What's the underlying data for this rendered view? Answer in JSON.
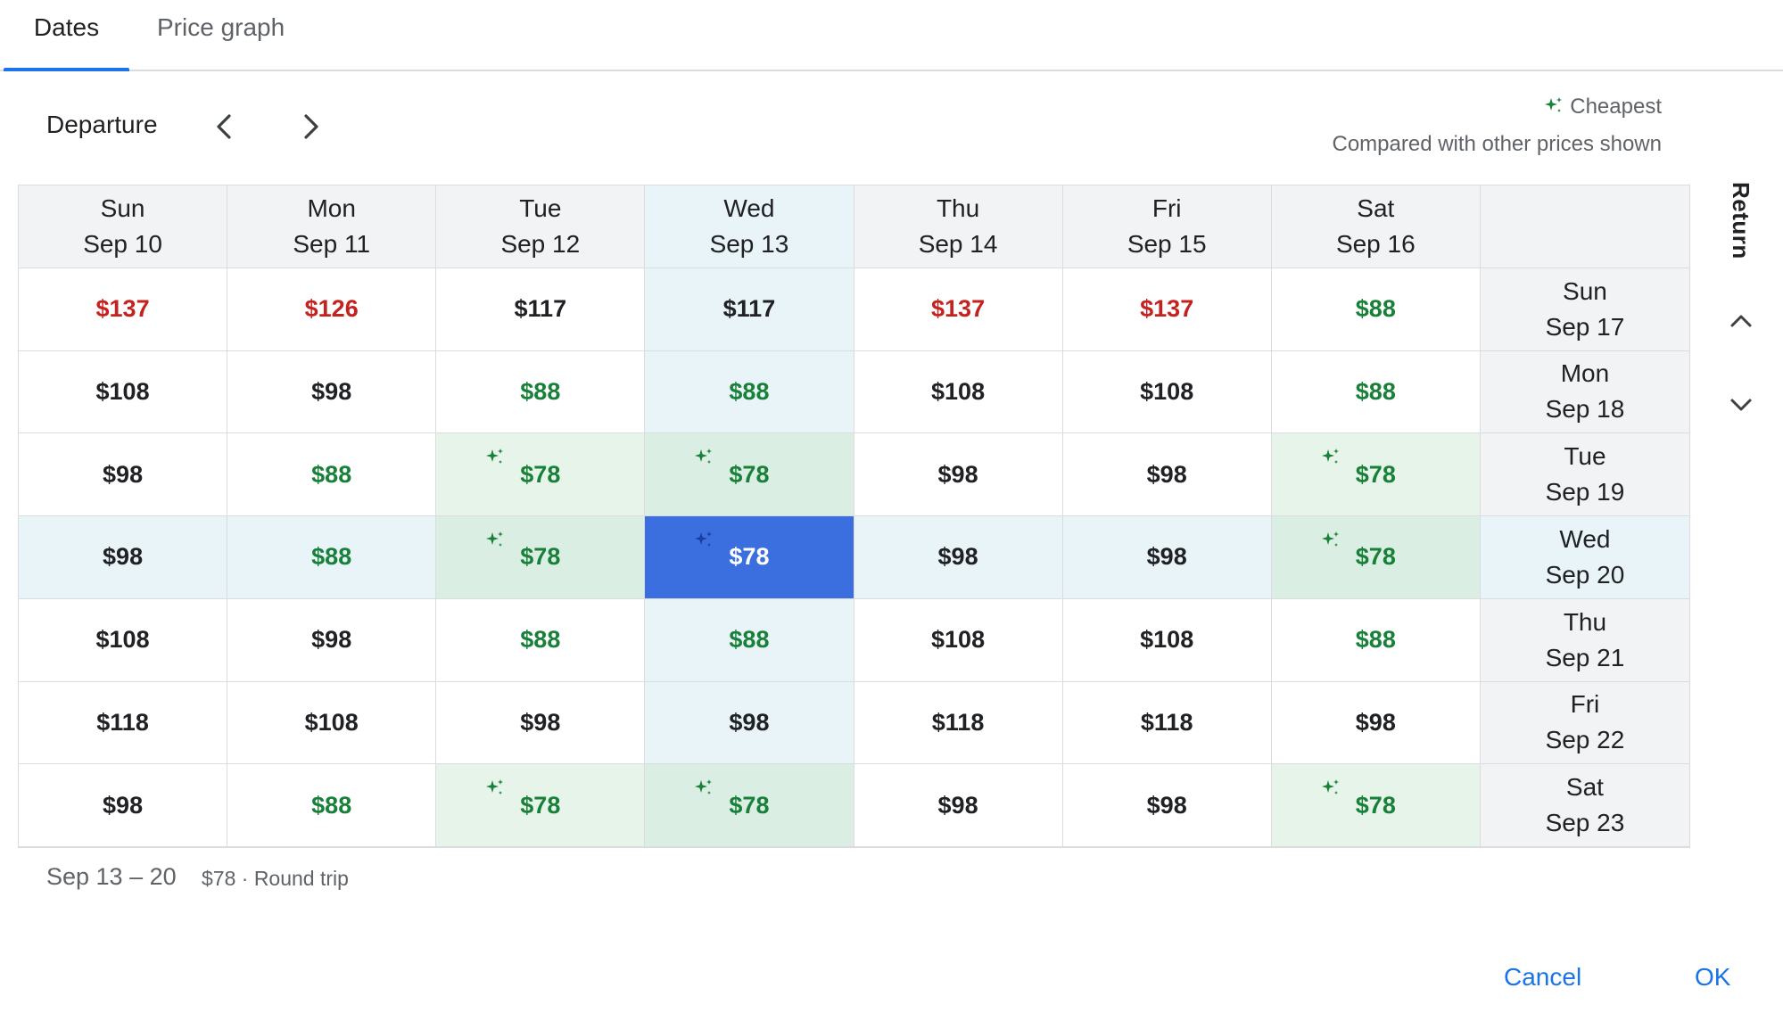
{
  "tabs": [
    {
      "label": "Dates",
      "active": true
    },
    {
      "label": "Price graph",
      "active": false
    }
  ],
  "departure_label": "Departure",
  "legend": {
    "cheapest_label": "Cheapest",
    "note": "Compared with other prices shown",
    "icon": "sparkle-icon",
    "color": "#188038"
  },
  "return_label": "Return",
  "columns": [
    {
      "day": "Sun",
      "date": "Sep 10"
    },
    {
      "day": "Mon",
      "date": "Sep 11"
    },
    {
      "day": "Tue",
      "date": "Sep 12"
    },
    {
      "day": "Wed",
      "date": "Sep 13"
    },
    {
      "day": "Thu",
      "date": "Sep 14"
    },
    {
      "day": "Fri",
      "date": "Sep 15"
    },
    {
      "day": "Sat",
      "date": "Sep 16"
    }
  ],
  "selected_column_index": 3,
  "selected_row_index": 3,
  "rows": [
    {
      "day": "Sun",
      "date": "Sep 17",
      "cells": [
        {
          "price": "$137",
          "tone": "red"
        },
        {
          "price": "$126",
          "tone": "red"
        },
        {
          "price": "$117",
          "tone": "black"
        },
        {
          "price": "$117",
          "tone": "black"
        },
        {
          "price": "$137",
          "tone": "red"
        },
        {
          "price": "$137",
          "tone": "red"
        },
        {
          "price": "$88",
          "tone": "green"
        }
      ]
    },
    {
      "day": "Mon",
      "date": "Sep 18",
      "cells": [
        {
          "price": "$108",
          "tone": "black"
        },
        {
          "price": "$98",
          "tone": "black"
        },
        {
          "price": "$88",
          "tone": "green"
        },
        {
          "price": "$88",
          "tone": "green"
        },
        {
          "price": "$108",
          "tone": "black"
        },
        {
          "price": "$108",
          "tone": "black"
        },
        {
          "price": "$88",
          "tone": "green"
        }
      ]
    },
    {
      "day": "Tue",
      "date": "Sep 19",
      "cells": [
        {
          "price": "$98",
          "tone": "black"
        },
        {
          "price": "$88",
          "tone": "green"
        },
        {
          "price": "$78",
          "tone": "green",
          "cheapest": true
        },
        {
          "price": "$78",
          "tone": "green",
          "cheapest": true
        },
        {
          "price": "$98",
          "tone": "black"
        },
        {
          "price": "$98",
          "tone": "black"
        },
        {
          "price": "$78",
          "tone": "green",
          "cheapest": true
        }
      ]
    },
    {
      "day": "Wed",
      "date": "Sep 20",
      "cells": [
        {
          "price": "$98",
          "tone": "black"
        },
        {
          "price": "$88",
          "tone": "green"
        },
        {
          "price": "$78",
          "tone": "green",
          "cheapest": true
        },
        {
          "price": "$78",
          "tone": "green",
          "cheapest": true,
          "selected": true
        },
        {
          "price": "$98",
          "tone": "black"
        },
        {
          "price": "$98",
          "tone": "black"
        },
        {
          "price": "$78",
          "tone": "green",
          "cheapest": true
        }
      ]
    },
    {
      "day": "Thu",
      "date": "Sep 21",
      "cells": [
        {
          "price": "$108",
          "tone": "black"
        },
        {
          "price": "$98",
          "tone": "black"
        },
        {
          "price": "$88",
          "tone": "green"
        },
        {
          "price": "$88",
          "tone": "green"
        },
        {
          "price": "$108",
          "tone": "black"
        },
        {
          "price": "$108",
          "tone": "black"
        },
        {
          "price": "$88",
          "tone": "green"
        }
      ]
    },
    {
      "day": "Fri",
      "date": "Sep 22",
      "cells": [
        {
          "price": "$118",
          "tone": "black"
        },
        {
          "price": "$108",
          "tone": "black"
        },
        {
          "price": "$98",
          "tone": "black"
        },
        {
          "price": "$98",
          "tone": "black"
        },
        {
          "price": "$118",
          "tone": "black"
        },
        {
          "price": "$118",
          "tone": "black"
        },
        {
          "price": "$98",
          "tone": "black"
        }
      ]
    },
    {
      "day": "Sat",
      "date": "Sep 23",
      "cells": [
        {
          "price": "$98",
          "tone": "black"
        },
        {
          "price": "$88",
          "tone": "green"
        },
        {
          "price": "$78",
          "tone": "green",
          "cheapest": true
        },
        {
          "price": "$78",
          "tone": "green",
          "cheapest": true
        },
        {
          "price": "$98",
          "tone": "black"
        },
        {
          "price": "$98",
          "tone": "black"
        },
        {
          "price": "$78",
          "tone": "green",
          "cheapest": true
        }
      ]
    }
  ],
  "footer": {
    "dates": "Sep 13 – 20",
    "price_summary": "$78 · Round trip"
  },
  "buttons": {
    "cancel": "Cancel",
    "ok": "OK"
  },
  "colors": {
    "accent": "#1a73e8",
    "selected_cell": "#3b6fe0",
    "cheap_green": "#188038",
    "expensive_red": "#c5221f"
  }
}
